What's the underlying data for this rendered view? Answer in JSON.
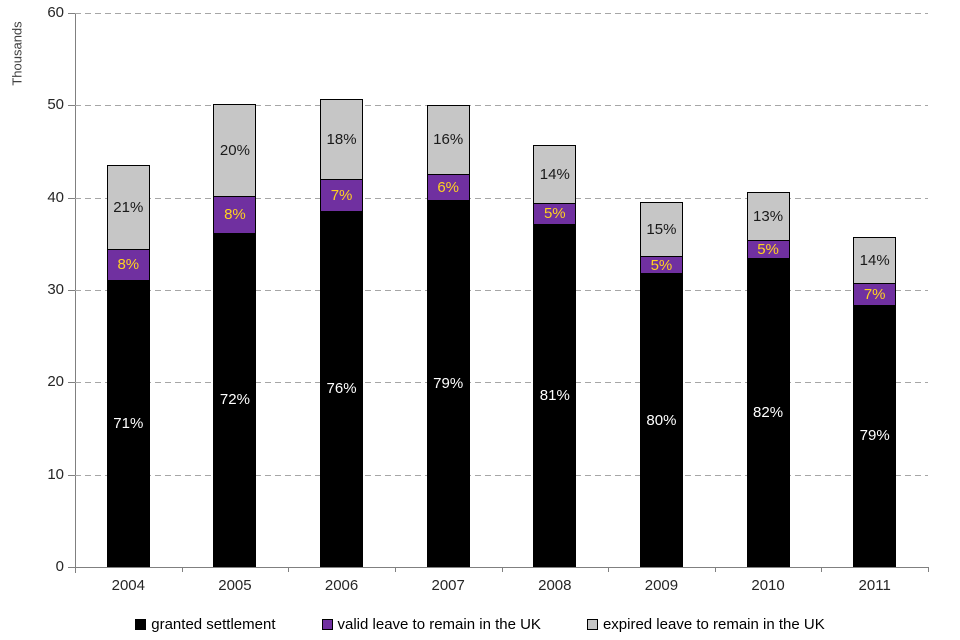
{
  "chart_data": {
    "type": "bar",
    "stacked": true,
    "title": "",
    "ylabel": "Thousands",
    "ylim": [
      0,
      60
    ],
    "yticks": [
      0,
      10,
      20,
      30,
      40,
      50,
      60
    ],
    "grid": "horizontal-dashed",
    "legend_position": "bottom",
    "axis_color": "#808080",
    "gridline_color": "#A6A6A6",
    "categories": [
      "2004",
      "2005",
      "2006",
      "2007",
      "2008",
      "2009",
      "2010",
      "2011"
    ],
    "totals": [
      43.8,
      50.4,
      50.9,
      50.3,
      45.9,
      39.8,
      40.8,
      36.0
    ],
    "series": [
      {
        "name": "granted settlement",
        "color": "#000000",
        "label_color": "#ffffff",
        "values": [
          31.1,
          36.2,
          38.6,
          39.7,
          37.2,
          31.8,
          33.5,
          28.4
        ],
        "labels": [
          "71%",
          "72%",
          "76%",
          "79%",
          "81%",
          "80%",
          "82%",
          "79%"
        ]
      },
      {
        "name": "valid leave to remain in the UK",
        "color": "#7030A0",
        "label_color": "#FFD320",
        "values": [
          3.5,
          4.1,
          3.5,
          3.0,
          2.3,
          2.0,
          2.0,
          2.5
        ],
        "labels": [
          "8%",
          "8%",
          "7%",
          "6%",
          "5%",
          "5%",
          "5%",
          "7%"
        ]
      },
      {
        "name": "expired leave to remain in the UK",
        "color": "#C6C6C6",
        "label_color": "#1a1a1a",
        "values": [
          9.2,
          10.1,
          8.8,
          7.6,
          6.4,
          6.0,
          5.3,
          5.1
        ],
        "labels": [
          "21%",
          "20%",
          "18%",
          "16%",
          "14%",
          "15%",
          "13%",
          "14%"
        ]
      }
    ]
  }
}
